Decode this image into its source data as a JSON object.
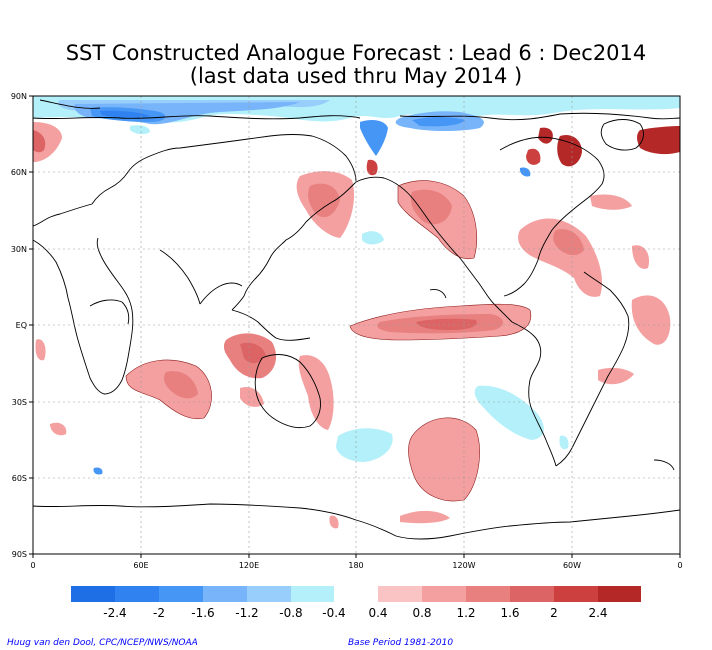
{
  "title_line1": "SST Constructed Analogue Forecast : Lead 6 : Dec2014",
  "title_line2": "(last data used thru May 2014 )",
  "lat_labels": [
    "90N",
    "60N",
    "30N",
    "EQ",
    "30S",
    "60S",
    "90S"
  ],
  "lon_labels": [
    "0",
    "60E",
    "120E",
    "180",
    "120W",
    "60W",
    "0"
  ],
  "colorbar": {
    "neg_labels": [
      "-2.4",
      "-2",
      "-1.6",
      "-1.2",
      "-0.8",
      "-0.4"
    ],
    "pos_labels": [
      "0.4",
      "0.8",
      "1.2",
      "1.6",
      "2",
      "2.4"
    ],
    "neg_colors": [
      "#1e6ee6",
      "#2f82f0",
      "#4596f5",
      "#78b4fa",
      "#98cefb",
      "#b4f0fa"
    ],
    "pos_colors": [
      "#fac4c4",
      "#f4a0a0",
      "#e88080",
      "#dc6464",
      "#cc4040",
      "#b42828"
    ]
  },
  "credit": "Huug van den Dool, CPC/NCEP/NWS/NOAA",
  "base_period": "Base Period 1981-2010"
}
